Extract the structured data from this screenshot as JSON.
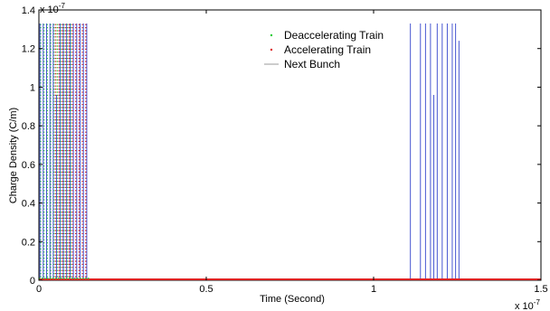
{
  "chart_data": {
    "type": "line",
    "title": "",
    "xlabel": "Time (Second)",
    "ylabel": "Charge Density (C/m)",
    "x_exponent_label": "x 10",
    "x_exponent": "-7",
    "y_exponent_label": "x 10",
    "y_exponent": "-7",
    "xlim": [
      0,
      1.5
    ],
    "ylim": [
      0,
      1.4
    ],
    "x_unit_scale": "1e-7",
    "y_unit_scale": "1e-7",
    "xticks": [
      0,
      0.5,
      1,
      1.5
    ],
    "xtick_labels": [
      "0",
      "0.5",
      "1",
      "1.5"
    ],
    "yticks": [
      0,
      0.2,
      0.4,
      0.6,
      0.8,
      1,
      1.2,
      1.4
    ],
    "ytick_labels": [
      "0",
      "0.2",
      "0.4",
      "0.6",
      "0.8",
      "1",
      "1.2",
      "1.4"
    ],
    "grid": false,
    "legend_position": "top-center",
    "series": [
      {
        "name": "Deaccelerating Train",
        "style": "dotted",
        "color": "#22cc33",
        "pulse_x": [
          0.005,
          0.015,
          0.025,
          0.035,
          0.045,
          0.055,
          0.065,
          0.075,
          0.085,
          0.095
        ],
        "pulse_peak": [
          1.33,
          1.33,
          1.33,
          1.33,
          1.33,
          1.33,
          1.33,
          1.33,
          1.33,
          1.33
        ],
        "baseline": 0
      },
      {
        "name": "Accelerating Train",
        "style": "dotted",
        "color": "#dd2222",
        "pulse_x": [
          0.05,
          0.06,
          0.07,
          0.08,
          0.09,
          0.1,
          0.11,
          0.12,
          0.13,
          0.14
        ],
        "pulse_peak": [
          1.33,
          1.33,
          1.33,
          1.33,
          1.33,
          1.33,
          1.33,
          1.33,
          1.33,
          1.33
        ],
        "baseline": 0
      },
      {
        "name": "Next Bunch",
        "style": "solid",
        "color": "#3344cc",
        "pulse_x": [
          0.003,
          0.013,
          0.023,
          0.033,
          0.043,
          0.053,
          0.063,
          0.073,
          0.083,
          0.093,
          0.103,
          0.113,
          0.123,
          0.133,
          0.143,
          1.11,
          1.14,
          1.155,
          1.17,
          1.18,
          1.19,
          1.205,
          1.22,
          1.235,
          1.245,
          1.255
        ],
        "pulse_peak": [
          1.33,
          1.33,
          1.33,
          1.33,
          1.33,
          0.96,
          1.33,
          1.33,
          1.33,
          1.33,
          1.33,
          1.33,
          1.33,
          1.33,
          1.33,
          1.33,
          1.33,
          1.33,
          1.33,
          0.96,
          1.33,
          1.33,
          1.33,
          1.33,
          1.33,
          1.24
        ],
        "baseline": 0
      }
    ]
  }
}
